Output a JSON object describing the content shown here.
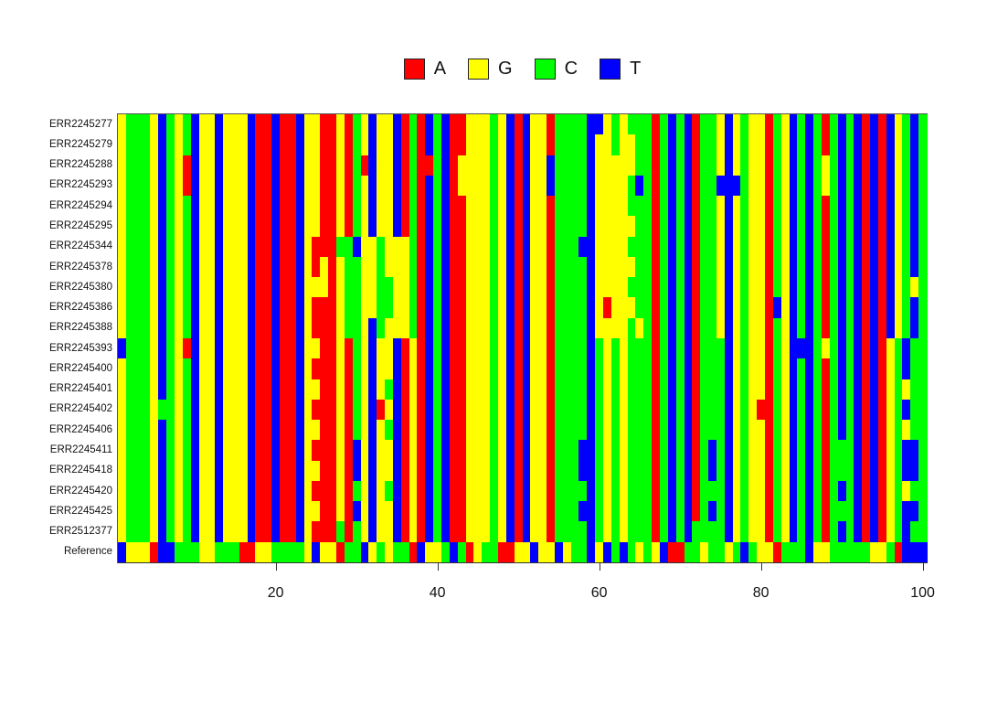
{
  "legend": {
    "items": [
      {
        "label": "A"
      },
      {
        "label": "G"
      },
      {
        "label": "C"
      },
      {
        "label": "T"
      }
    ]
  },
  "chart_data": {
    "type": "heatmap",
    "title": "",
    "xlabel": "",
    "ylabel": "",
    "x_ticks": [
      20,
      40,
      60,
      80,
      100
    ],
    "n_positions": 100,
    "legend_entries": [
      "A",
      "G",
      "C",
      "T"
    ],
    "nucleotide_colors": {
      "A": "#ff0000",
      "G": "#ffff00",
      "C": "#00ff00",
      "T": "#0000ff"
    },
    "rows": [
      "ERR2245277",
      "ERR2245279",
      "ERR2245288",
      "ERR2245293",
      "ERR2245294",
      "ERR2245295",
      "ERR2245344",
      "ERR2245378",
      "ERR2245380",
      "ERR2245386",
      "ERR2245388",
      "ERR2245393",
      "ERR2245400",
      "ERR2245401",
      "ERR2245402",
      "ERR2245406",
      "ERR2245411",
      "ERR2245418",
      "ERR2245420",
      "ERR2245425",
      "ERR2512377"
    ],
    "reference_row_label": "Reference",
    "base_sequence": "GCCCGTCGCTGGTGGGTAATAATGGAAGACGTGGTACATCTAAGGGCGTATGGACCCCTGGCGCCCACTCTACCGTGCGGACGTCTCACTCTATATGCTC",
    "reference_sequence": "TGGGATTCCCGGCCCAAGGCCCCGTGGACCTGCGCCATGGCTCAGCCAAGGTGGTGCCTGTCTCGCGTAACCGCCGCTCGGACCCTGGCCCCCGGCATTT",
    "overrides": [
      {
        "c": 1,
        "r": [
          12
        ],
        "n": "T"
      },
      {
        "c": 6,
        "r": [
          15
        ],
        "n": "C"
      },
      {
        "c": 9,
        "r": [
          3,
          4,
          12
        ],
        "n": "A"
      },
      {
        "c": 25,
        "r": [
          7,
          8,
          10,
          11,
          13,
          15,
          17,
          19,
          21
        ],
        "n": "A"
      },
      {
        "c": 26,
        "r": [
          8,
          9
        ],
        "n": "G"
      },
      {
        "c": 28,
        "r": [
          7,
          21
        ],
        "n": "C"
      },
      {
        "c": 29,
        "r": [
          7,
          8,
          9,
          10,
          11
        ],
        "n": "C"
      },
      {
        "c": 30,
        "r": [
          7,
          17,
          18,
          20
        ],
        "n": "T"
      },
      {
        "c": 31,
        "r": [
          3
        ],
        "n": "A"
      },
      {
        "c": 32,
        "r": [
          7,
          8,
          9,
          10
        ],
        "n": "G"
      },
      {
        "c": 33,
        "r": [
          7,
          8,
          9,
          10,
          11
        ],
        "n": "C"
      },
      {
        "c": 33,
        "r": [
          15
        ],
        "n": "A"
      },
      {
        "c": 34,
        "r": [
          9,
          10,
          14,
          16,
          19
        ],
        "n": "C"
      },
      {
        "c": 35,
        "r": [
          7,
          8,
          9,
          10,
          11
        ],
        "n": "G"
      },
      {
        "c": 36,
        "r": [
          7,
          8,
          9,
          10,
          11
        ],
        "n": "G"
      },
      {
        "c": 37,
        "r": [
          12,
          13,
          14,
          15,
          16,
          17,
          18,
          19,
          20,
          21
        ],
        "n": "G"
      },
      {
        "c": 39,
        "r": [
          3
        ],
        "n": "A"
      },
      {
        "c": 43,
        "r": [
          3,
          4
        ],
        "n": "G"
      },
      {
        "c": 54,
        "r": [
          3,
          4
        ],
        "n": "T"
      },
      {
        "c": 58,
        "r": [
          7,
          17,
          18,
          20
        ],
        "n": "T"
      },
      {
        "c": 60,
        "r": [
          1
        ],
        "n": "T"
      },
      {
        "c": 60,
        "r": [
          12,
          13,
          14,
          15,
          16,
          17,
          18,
          19,
          20,
          21
        ],
        "n": "C"
      },
      {
        "c": 61,
        "r": [
          10
        ],
        "n": "A"
      },
      {
        "c": 62,
        "r": [
          3,
          4,
          5,
          6,
          7,
          8,
          9,
          10,
          11
        ],
        "n": "G"
      },
      {
        "c": 64,
        "r": [
          2,
          3,
          6,
          8,
          10
        ],
        "n": "G"
      },
      {
        "c": 65,
        "r": [
          4
        ],
        "n": "T"
      },
      {
        "c": 65,
        "r": [
          11
        ],
        "n": "G"
      },
      {
        "c": 72,
        "r": [
          21
        ],
        "n": "C"
      },
      {
        "c": 74,
        "r": [
          17,
          18,
          20
        ],
        "n": "T"
      },
      {
        "c": 75,
        "r": [
          4
        ],
        "n": "T"
      },
      {
        "c": 75,
        "r": [
          12,
          13,
          14,
          15,
          16,
          17,
          18,
          19,
          20,
          21
        ],
        "n": "C"
      },
      {
        "c": 77,
        "r": [
          4
        ],
        "n": "T"
      },
      {
        "c": 80,
        "r": [
          15
        ],
        "n": "A"
      },
      {
        "c": 82,
        "r": [
          10
        ],
        "n": "T"
      },
      {
        "c": 85,
        "r": [
          12
        ],
        "n": "T"
      },
      {
        "c": 88,
        "r": [
          3,
          4,
          12
        ],
        "n": "G"
      },
      {
        "c": 90,
        "r": [
          17,
          18,
          20
        ],
        "n": "C"
      },
      {
        "c": 96,
        "r": [
          12,
          13,
          14,
          15,
          16,
          17,
          18,
          19,
          20,
          21
        ],
        "n": "G"
      },
      {
        "c": 97,
        "r": [
          12,
          13,
          14,
          15,
          16,
          17,
          18,
          19,
          20,
          21
        ],
        "n": "C"
      },
      {
        "c": 98,
        "r": [
          12,
          13,
          15,
          17,
          18,
          20,
          21
        ],
        "n": "T"
      },
      {
        "c": 98,
        "r": [
          14,
          16,
          19
        ],
        "n": "G"
      },
      {
        "c": 99,
        "r": [
          9
        ],
        "n": "G"
      },
      {
        "c": 99,
        "r": [
          12,
          13,
          14,
          15,
          16,
          19,
          21
        ],
        "n": "C"
      }
    ]
  }
}
